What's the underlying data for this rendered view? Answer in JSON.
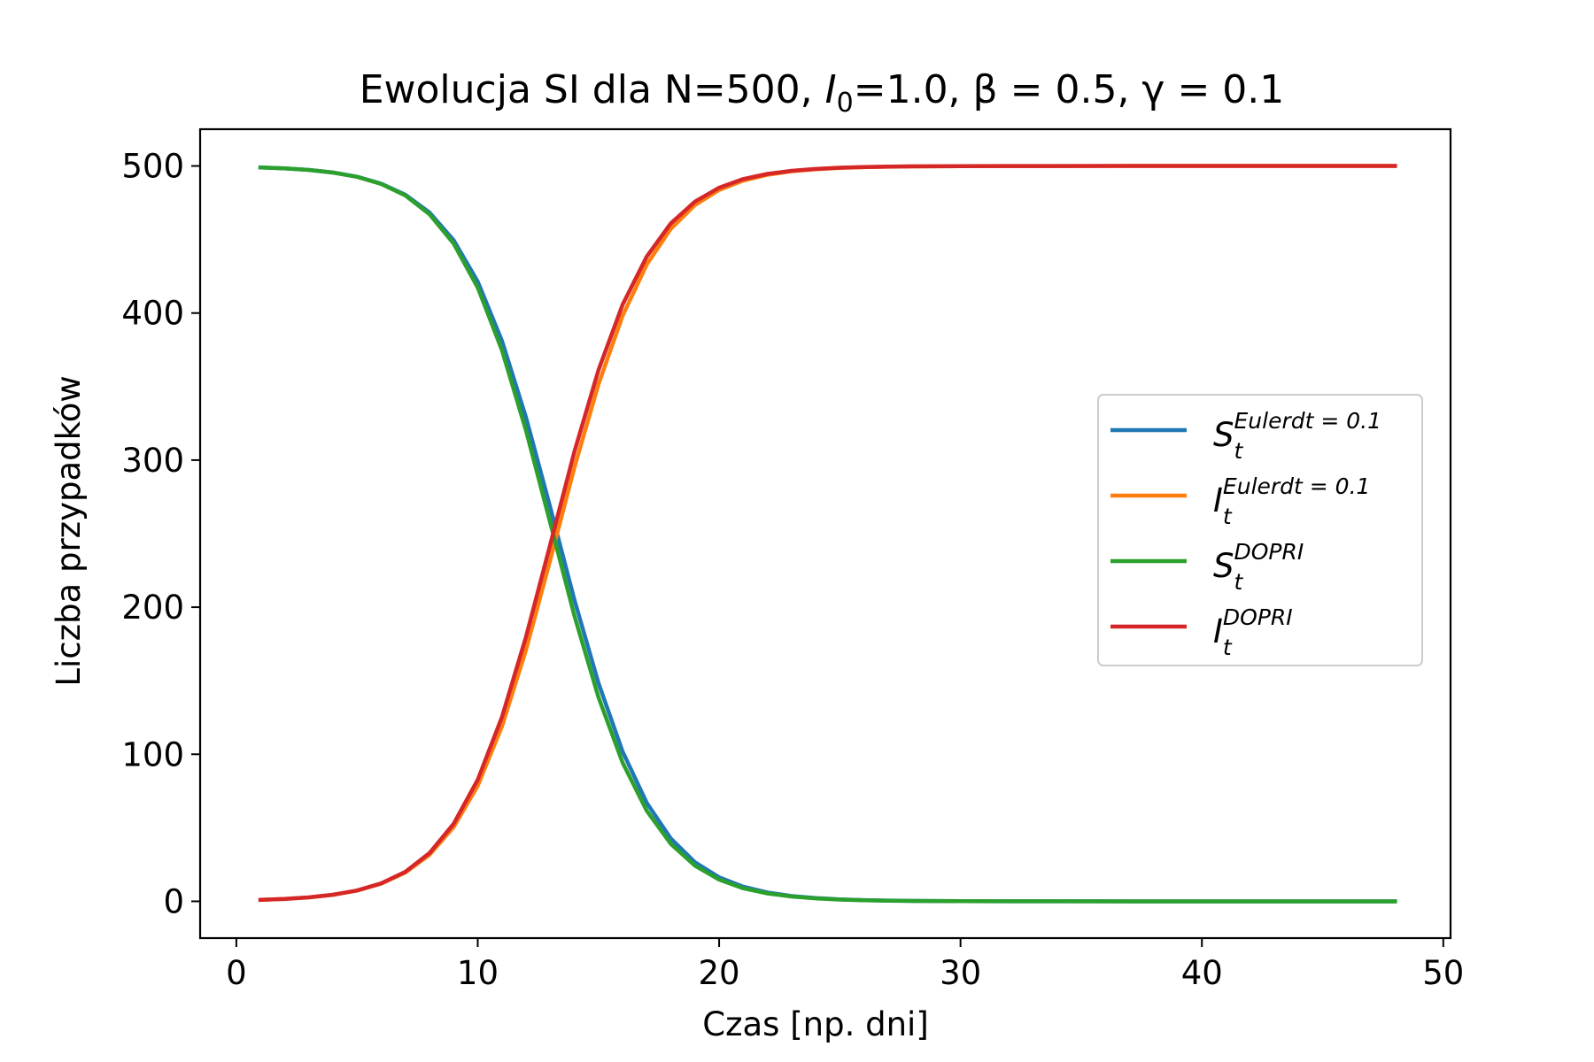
{
  "chart_data": {
    "type": "line",
    "title_prefix": "Ewolucja SI dla N=500, ",
    "title_i_symbol": "I",
    "title_i_sub": "0",
    "title_i_value": "=1.0, ",
    "title_beta": "β = 0.5, ",
    "title_gamma": "γ = 0.1",
    "xlabel": "Czas [np. dni]",
    "ylabel": "Liczba przypadków",
    "xlim": [
      -1.5,
      50.3
    ],
    "ylim": [
      -25,
      525
    ],
    "xticks": [
      0,
      10,
      20,
      30,
      40,
      50
    ],
    "yticks": [
      0,
      100,
      200,
      300,
      400,
      500
    ],
    "grid": false,
    "legend_position": "center-right",
    "x": [
      1,
      2,
      3,
      4,
      5,
      6,
      7,
      8,
      9,
      10,
      11,
      12,
      13,
      14,
      15,
      16,
      17,
      18,
      19,
      20,
      21,
      22,
      23,
      24,
      25,
      26,
      27,
      28,
      29,
      30,
      32,
      34,
      36,
      38,
      40,
      42,
      44,
      46,
      48
    ],
    "series": [
      {
        "name": "S_t^{Eulerdt = 0.1}",
        "legend_base": "S",
        "legend_sub": "t",
        "legend_sup": "Eulerdt = 0.1",
        "color": "#1f77b4",
        "values": [
          499.0,
          498.4,
          497.3,
          495.6,
          492.7,
          488.0,
          480.4,
          468.4,
          449.6,
          421.4,
          381.3,
          329.0,
          268.0,
          205.3,
          148.4,
          101.9,
          67.0,
          42.7,
          26.6,
          16.3,
          9.9,
          6.0,
          3.6,
          2.2,
          1.3,
          0.8,
          0.5,
          0.3,
          0.2,
          0.1,
          0.05,
          0.02,
          0.01,
          0.0,
          0.0,
          0.0,
          0.0,
          0.0,
          0.0
        ]
      },
      {
        "name": "I_t^{Eulerdt = 0.1}",
        "legend_base": "I",
        "legend_sub": "t",
        "legend_sup": "Eulerdt = 0.1",
        "color": "#ff7f0e",
        "values": [
          1.0,
          1.6,
          2.7,
          4.4,
          7.3,
          12.0,
          19.6,
          31.6,
          50.4,
          78.6,
          118.7,
          171.0,
          232.0,
          294.7,
          351.6,
          398.1,
          433.0,
          457.3,
          473.4,
          483.7,
          490.1,
          494.0,
          496.4,
          497.8,
          498.7,
          499.2,
          499.5,
          499.7,
          499.8,
          499.9,
          499.95,
          499.98,
          499.99,
          500.0,
          500.0,
          500.0,
          500.0,
          500.0,
          500.0
        ]
      },
      {
        "name": "S_t^{DOPRI}",
        "legend_base": "S",
        "legend_sub": "t",
        "legend_sup": "DOPRI",
        "color": "#2ca02c",
        "values": [
          499.0,
          498.4,
          497.3,
          495.5,
          492.6,
          487.8,
          479.9,
          467.2,
          447.3,
          417.3,
          374.9,
          320.1,
          257.5,
          194.5,
          138.8,
          94.4,
          61.6,
          39.0,
          24.2,
          14.8,
          8.9,
          5.4,
          3.3,
          2.0,
          1.2,
          0.7,
          0.4,
          0.3,
          0.2,
          0.1,
          0.04,
          0.01,
          0.0,
          0.0,
          0.0,
          0.0,
          0.0,
          0.0,
          0.0
        ]
      },
      {
        "name": "I_t^{DOPRI}",
        "legend_base": "I",
        "legend_sub": "t",
        "legend_sup": "DOPRI",
        "color": "#d62728",
        "values": [
          1.0,
          1.6,
          2.7,
          4.5,
          7.4,
          12.2,
          20.1,
          32.8,
          52.7,
          82.7,
          125.1,
          179.9,
          242.5,
          305.5,
          361.2,
          405.6,
          438.4,
          461.0,
          475.8,
          485.2,
          491.1,
          494.6,
          496.7,
          498.0,
          498.8,
          499.3,
          499.6,
          499.7,
          499.8,
          499.9,
          499.96,
          499.99,
          500.0,
          500.0,
          500.0,
          500.0,
          500.0,
          500.0,
          500.0
        ]
      }
    ]
  }
}
